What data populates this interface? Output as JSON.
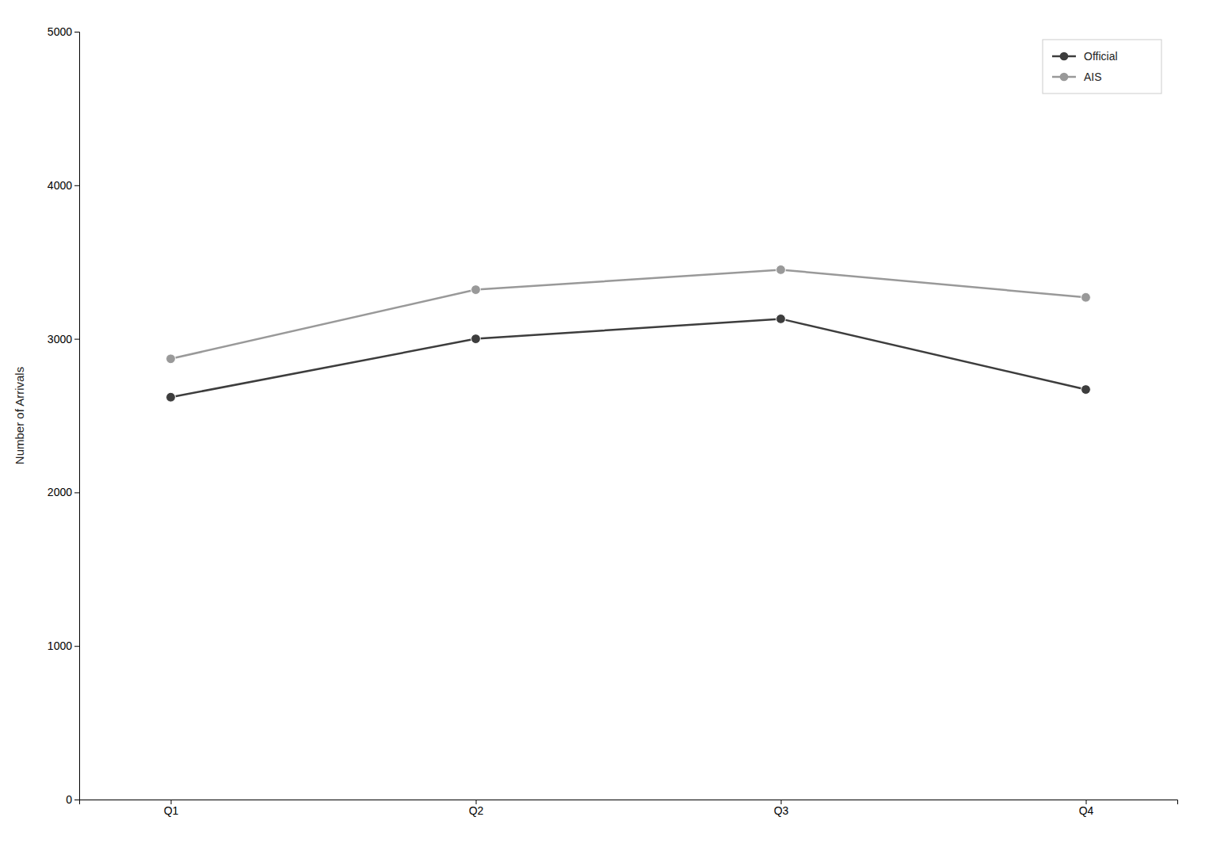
{
  "chart_data": {
    "type": "line",
    "ylabel": "Number of Arrivals",
    "categories": [
      "Q1",
      "Q2",
      "Q3",
      "Q4"
    ],
    "series": [
      {
        "name": "Official",
        "color": "#3d3d3d",
        "values": [
          2620,
          3000,
          3130,
          2670
        ],
        "marker": "circle",
        "line_style": "solid"
      },
      {
        "name": "AIS",
        "color": "#999999",
        "values": [
          2870,
          3320,
          3450,
          3270
        ],
        "marker": "circle",
        "line_style": "solid"
      }
    ],
    "ylim": [
      0,
      5000
    ],
    "yticks": [
      0,
      1000,
      2000,
      3000,
      4000,
      5000
    ],
    "grid": false,
    "legend": "upper-right"
  }
}
